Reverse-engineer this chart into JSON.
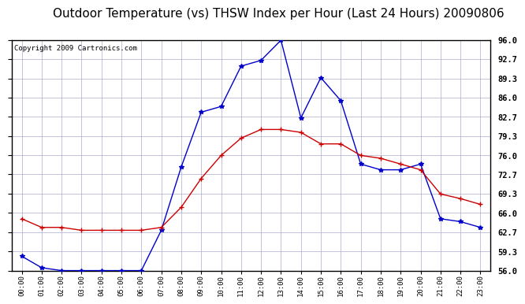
{
  "title": "Outdoor Temperature (vs) THSW Index per Hour (Last 24 Hours) 20090806",
  "copyright": "Copyright 2009 Cartronics.com",
  "hours": [
    "00:00",
    "01:00",
    "02:00",
    "03:00",
    "04:00",
    "05:00",
    "06:00",
    "07:00",
    "08:00",
    "09:00",
    "10:00",
    "11:00",
    "12:00",
    "13:00",
    "14:00",
    "15:00",
    "16:00",
    "17:00",
    "18:00",
    "19:00",
    "20:00",
    "21:00",
    "22:00",
    "23:00"
  ],
  "temp_red": [
    65.0,
    63.5,
    63.5,
    63.0,
    63.0,
    63.0,
    63.0,
    63.5,
    67.0,
    72.0,
    76.0,
    79.0,
    80.5,
    80.5,
    80.0,
    78.0,
    78.0,
    76.0,
    75.5,
    74.5,
    73.5,
    69.3,
    68.5,
    67.5
  ],
  "thsw_blue": [
    58.5,
    56.5,
    56.0,
    56.0,
    56.0,
    56.0,
    56.0,
    63.0,
    74.0,
    83.5,
    84.5,
    91.5,
    92.5,
    96.0,
    82.5,
    89.5,
    85.5,
    74.5,
    73.5,
    73.5,
    74.5,
    65.0,
    64.5,
    63.5
  ],
  "ylim_min": 56.0,
  "ylim_max": 96.0,
  "yticks": [
    56.0,
    59.3,
    62.7,
    66.0,
    69.3,
    72.7,
    76.0,
    79.3,
    82.7,
    86.0,
    89.3,
    92.7,
    96.0
  ],
  "red_color": "#cc0000",
  "blue_color": "#0000cc",
  "grid_color": "#aaaacc",
  "bg_color": "#ffffff",
  "title_fontsize": 11,
  "copyright_fontsize": 6.5
}
